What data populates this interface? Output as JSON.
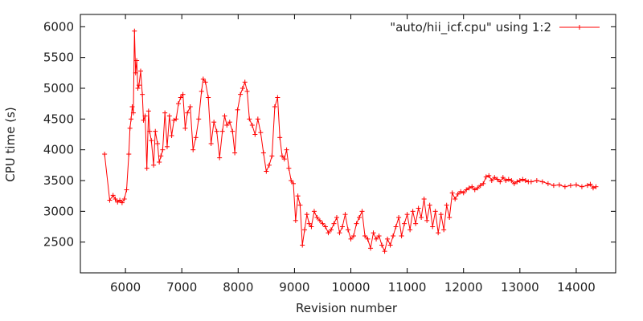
{
  "chart_data": {
    "type": "line",
    "title": "",
    "xlabel": "Revision number",
    "ylabel": "CPU time (s)",
    "xlim": [
      5200,
      14700
    ],
    "ylim": [
      2000,
      6200
    ],
    "x_ticks": [
      6000,
      7000,
      8000,
      9000,
      10000,
      11000,
      12000,
      13000,
      14000
    ],
    "y_ticks": [
      2500,
      3000,
      3500,
      4000,
      4500,
      5000,
      5500,
      6000
    ],
    "grid": false,
    "legend_position": "top-right",
    "marker": "plus",
    "series": [
      {
        "name": "\"auto/hii_icf.cpu\" using 1:2",
        "color": "#ff0000",
        "points": [
          [
            5630,
            3930
          ],
          [
            5720,
            3180
          ],
          [
            5780,
            3260
          ],
          [
            5820,
            3200
          ],
          [
            5860,
            3150
          ],
          [
            5900,
            3180
          ],
          [
            5940,
            3140
          ],
          [
            5980,
            3200
          ],
          [
            6020,
            3350
          ],
          [
            6060,
            3930
          ],
          [
            6080,
            4350
          ],
          [
            6100,
            4500
          ],
          [
            6120,
            4700
          ],
          [
            6140,
            4600
          ],
          [
            6160,
            5930
          ],
          [
            6180,
            5250
          ],
          [
            6200,
            5450
          ],
          [
            6220,
            5000
          ],
          [
            6240,
            5050
          ],
          [
            6270,
            5280
          ],
          [
            6300,
            4900
          ],
          [
            6320,
            4480
          ],
          [
            6350,
            4550
          ],
          [
            6380,
            3700
          ],
          [
            6410,
            4630
          ],
          [
            6430,
            4300
          ],
          [
            6460,
            4150
          ],
          [
            6500,
            3750
          ],
          [
            6530,
            4300
          ],
          [
            6570,
            4100
          ],
          [
            6600,
            3800
          ],
          [
            6630,
            3900
          ],
          [
            6660,
            4000
          ],
          [
            6700,
            4600
          ],
          [
            6740,
            4050
          ],
          [
            6780,
            4550
          ],
          [
            6820,
            4230
          ],
          [
            6860,
            4480
          ],
          [
            6900,
            4500
          ],
          [
            6940,
            4750
          ],
          [
            6980,
            4850
          ],
          [
            7020,
            4900
          ],
          [
            7060,
            4350
          ],
          [
            7100,
            4600
          ],
          [
            7150,
            4700
          ],
          [
            7200,
            4000
          ],
          [
            7250,
            4200
          ],
          [
            7300,
            4500
          ],
          [
            7350,
            4950
          ],
          [
            7380,
            5150
          ],
          [
            7420,
            5100
          ],
          [
            7470,
            4850
          ],
          [
            7520,
            4100
          ],
          [
            7570,
            4450
          ],
          [
            7620,
            4300
          ],
          [
            7670,
            3870
          ],
          [
            7720,
            4300
          ],
          [
            7760,
            4550
          ],
          [
            7800,
            4400
          ],
          [
            7850,
            4450
          ],
          [
            7900,
            4300
          ],
          [
            7940,
            3950
          ],
          [
            7990,
            4650
          ],
          [
            8040,
            4900
          ],
          [
            8080,
            5000
          ],
          [
            8120,
            5100
          ],
          [
            8160,
            4950
          ],
          [
            8200,
            4500
          ],
          [
            8250,
            4400
          ],
          [
            8300,
            4250
          ],
          [
            8350,
            4500
          ],
          [
            8400,
            4280
          ],
          [
            8450,
            3950
          ],
          [
            8500,
            3650
          ],
          [
            8550,
            3750
          ],
          [
            8600,
            3900
          ],
          [
            8650,
            4700
          ],
          [
            8700,
            4850
          ],
          [
            8740,
            4200
          ],
          [
            8780,
            3900
          ],
          [
            8820,
            3850
          ],
          [
            8860,
            4000
          ],
          [
            8900,
            3700
          ],
          [
            8940,
            3500
          ],
          [
            8980,
            3450
          ],
          [
            9020,
            2850
          ],
          [
            9060,
            3250
          ],
          [
            9100,
            3100
          ],
          [
            9140,
            2450
          ],
          [
            9180,
            2700
          ],
          [
            9220,
            2950
          ],
          [
            9260,
            2800
          ],
          [
            9300,
            2750
          ],
          [
            9350,
            3000
          ],
          [
            9400,
            2900
          ],
          [
            9450,
            2850
          ],
          [
            9500,
            2800
          ],
          [
            9550,
            2750
          ],
          [
            9600,
            2650
          ],
          [
            9650,
            2700
          ],
          [
            9700,
            2800
          ],
          [
            9750,
            2900
          ],
          [
            9800,
            2650
          ],
          [
            9850,
            2750
          ],
          [
            9900,
            2950
          ],
          [
            9950,
            2700
          ],
          [
            10000,
            2550
          ],
          [
            10050,
            2600
          ],
          [
            10100,
            2800
          ],
          [
            10150,
            2900
          ],
          [
            10200,
            3000
          ],
          [
            10250,
            2600
          ],
          [
            10300,
            2550
          ],
          [
            10350,
            2400
          ],
          [
            10400,
            2650
          ],
          [
            10450,
            2550
          ],
          [
            10500,
            2600
          ],
          [
            10550,
            2450
          ],
          [
            10600,
            2350
          ],
          [
            10650,
            2550
          ],
          [
            10700,
            2450
          ],
          [
            10750,
            2600
          ],
          [
            10800,
            2750
          ],
          [
            10850,
            2900
          ],
          [
            10900,
            2600
          ],
          [
            10950,
            2800
          ],
          [
            11000,
            2950
          ],
          [
            11050,
            2700
          ],
          [
            11100,
            3000
          ],
          [
            11150,
            2800
          ],
          [
            11200,
            3050
          ],
          [
            11250,
            2900
          ],
          [
            11300,
            3200
          ],
          [
            11350,
            2850
          ],
          [
            11400,
            3100
          ],
          [
            11450,
            2750
          ],
          [
            11500,
            3000
          ],
          [
            11550,
            2650
          ],
          [
            11600,
            2950
          ],
          [
            11650,
            2700
          ],
          [
            11700,
            3100
          ],
          [
            11750,
            2900
          ],
          [
            11800,
            3300
          ],
          [
            11850,
            3200
          ],
          [
            11900,
            3280
          ],
          [
            11950,
            3320
          ],
          [
            12000,
            3300
          ],
          [
            12050,
            3350
          ],
          [
            12100,
            3380
          ],
          [
            12150,
            3400
          ],
          [
            12200,
            3350
          ],
          [
            12250,
            3380
          ],
          [
            12300,
            3420
          ],
          [
            12350,
            3450
          ],
          [
            12400,
            3560
          ],
          [
            12450,
            3580
          ],
          [
            12500,
            3500
          ],
          [
            12550,
            3550
          ],
          [
            12600,
            3520
          ],
          [
            12650,
            3480
          ],
          [
            12700,
            3550
          ],
          [
            12750,
            3500
          ],
          [
            12800,
            3520
          ],
          [
            12850,
            3500
          ],
          [
            12900,
            3450
          ],
          [
            12950,
            3480
          ],
          [
            13000,
            3500
          ],
          [
            13050,
            3520
          ],
          [
            13100,
            3500
          ],
          [
            13150,
            3480
          ],
          [
            13200,
            3480
          ],
          [
            13300,
            3500
          ],
          [
            13400,
            3480
          ],
          [
            13500,
            3450
          ],
          [
            13600,
            3420
          ],
          [
            13700,
            3430
          ],
          [
            13800,
            3400
          ],
          [
            13900,
            3420
          ],
          [
            14000,
            3430
          ],
          [
            14100,
            3400
          ],
          [
            14200,
            3420
          ],
          [
            14250,
            3440
          ],
          [
            14300,
            3380
          ],
          [
            14350,
            3400
          ]
        ]
      }
    ]
  }
}
